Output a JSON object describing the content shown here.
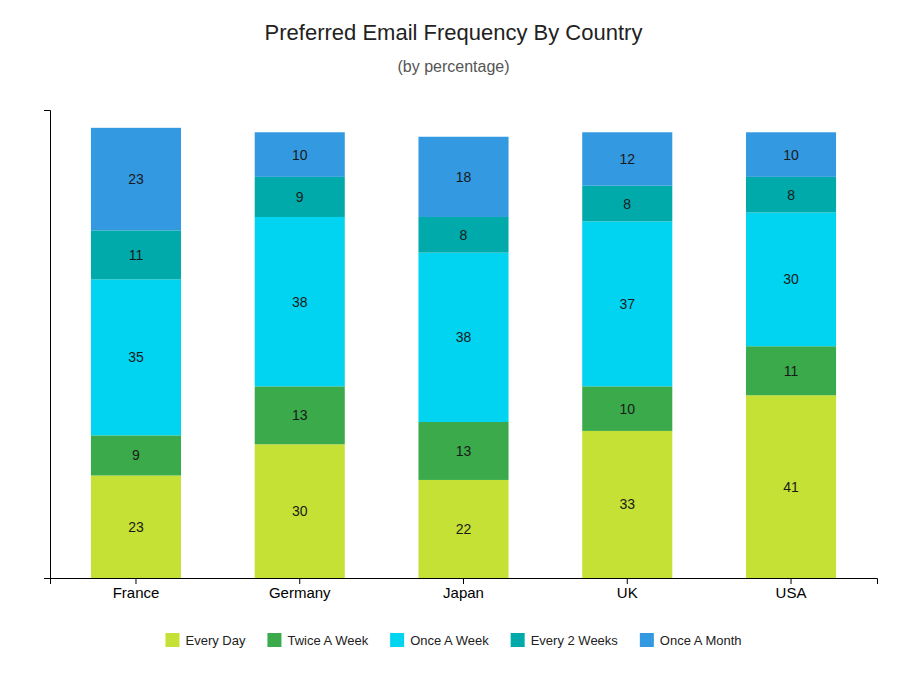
{
  "chart_data": {
    "type": "bar",
    "title": "Preferred Email Frequency By Country",
    "subtitle": "(by percentage)",
    "categories": [
      "France",
      "Germany",
      "Japan",
      "UK",
      "USA"
    ],
    "series": [
      {
        "name": "Every Day",
        "color": "#c5e135",
        "values": [
          23,
          30,
          22,
          33,
          41
        ]
      },
      {
        "name": "Twice A Week",
        "color": "#3aaa4a",
        "values": [
          9,
          13,
          13,
          10,
          11
        ]
      },
      {
        "name": "Once A Week",
        "color": "#00d4f0",
        "values": [
          35,
          38,
          38,
          37,
          30
        ]
      },
      {
        "name": "Every 2 Weeks",
        "color": "#00aaaa",
        "values": [
          11,
          9,
          8,
          8,
          8
        ]
      },
      {
        "name": "Once A Month",
        "color": "#3399e0",
        "values": [
          23,
          10,
          18,
          12,
          10
        ]
      }
    ],
    "stacked": true,
    "data_labels": true,
    "legend": "bottom",
    "grid": false,
    "tick_labels": "x",
    "ylim": [
      0,
      105
    ],
    "yticks": []
  }
}
